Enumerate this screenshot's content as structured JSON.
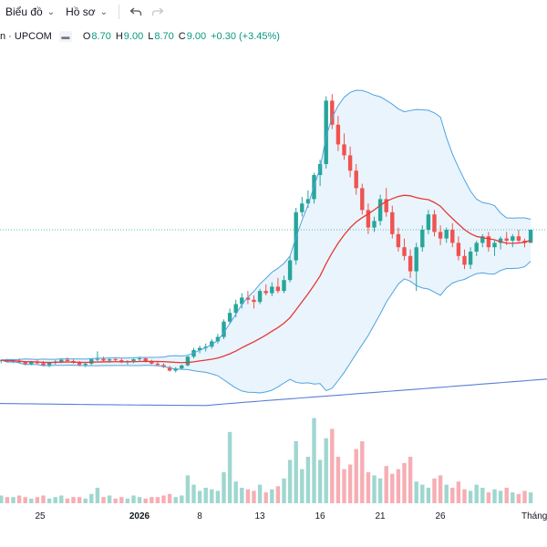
{
  "toolbar": {
    "chart_label": "Biểu đồ",
    "profile_label": "Hồ sơ",
    "undo_icon": "undo-icon",
    "redo_icon": "redo-icon"
  },
  "legend": {
    "symbol": "n · UPCOM",
    "open_label": "O",
    "open": "8.70",
    "high_label": "H",
    "high": "9.00",
    "low_label": "L",
    "low": "8.70",
    "close_label": "C",
    "close": "9.00",
    "change": "+0.30 (+3.45%)"
  },
  "colors": {
    "up": "#26a69a",
    "down": "#ef5350",
    "ma_band_line": "#4fa3e0",
    "band_fill": "#e8f3fc",
    "ma_line": "#e53935",
    "long_ma": "#5b7fd6",
    "vol_up": "#9fd7cf",
    "vol_down": "#f6aeb4"
  },
  "x_axis_labels": [
    "25",
    "2026",
    "8",
    "13",
    "16",
    "21",
    "26",
    "Tháng"
  ],
  "chart_data": {
    "type": "candlestick",
    "price_line": 9.0,
    "candles": [
      [
        6.0,
        6.04,
        5.95,
        6.02
      ],
      [
        6.02,
        6.05,
        5.97,
        5.99
      ],
      [
        5.99,
        6.03,
        5.95,
        6.01
      ],
      [
        6.01,
        6.06,
        5.96,
        5.97
      ],
      [
        5.97,
        6.0,
        5.9,
        5.93
      ],
      [
        5.93,
        6.0,
        5.9,
        5.98
      ],
      [
        5.98,
        6.03,
        5.93,
        5.95
      ],
      [
        5.95,
        6.0,
        5.88,
        5.9
      ],
      [
        5.9,
        5.98,
        5.86,
        5.96
      ],
      [
        5.96,
        6.02,
        5.92,
        5.99
      ],
      [
        5.99,
        6.05,
        5.95,
        6.03
      ],
      [
        6.03,
        6.08,
        5.98,
        6.0
      ],
      [
        6.0,
        6.04,
        5.94,
        5.96
      ],
      [
        5.96,
        6.0,
        5.88,
        5.91
      ],
      [
        5.91,
        5.96,
        5.86,
        5.94
      ],
      [
        5.94,
        6.06,
        5.9,
        6.04
      ],
      [
        6.04,
        6.22,
        6.0,
        6.05
      ],
      [
        6.05,
        6.1,
        5.98,
        6.01
      ],
      [
        6.01,
        6.07,
        5.96,
        6.04
      ],
      [
        6.04,
        6.09,
        5.98,
        6.02
      ],
      [
        6.02,
        6.06,
        5.95,
        5.97
      ],
      [
        5.97,
        6.02,
        5.92,
        6.0
      ],
      [
        6.0,
        6.06,
        5.95,
        6.04
      ],
      [
        6.04,
        6.1,
        5.98,
        6.06
      ],
      [
        6.06,
        6.09,
        5.97,
        6.0
      ],
      [
        6.0,
        6.03,
        5.92,
        5.94
      ],
      [
        5.94,
        5.98,
        5.88,
        5.91
      ],
      [
        5.91,
        5.95,
        5.84,
        5.86
      ],
      [
        5.86,
        5.89,
        5.76,
        5.78
      ],
      [
        5.78,
        5.86,
        5.74,
        5.83
      ],
      [
        5.83,
        5.92,
        5.8,
        5.9
      ],
      [
        5.9,
        6.12,
        5.88,
        6.1
      ],
      [
        6.1,
        6.3,
        6.06,
        6.25
      ],
      [
        6.25,
        6.35,
        6.18,
        6.3
      ],
      [
        6.3,
        6.4,
        6.22,
        6.33
      ],
      [
        6.33,
        6.5,
        6.28,
        6.45
      ],
      [
        6.45,
        6.62,
        6.4,
        6.55
      ],
      [
        6.55,
        6.95,
        6.5,
        6.9
      ],
      [
        6.9,
        7.2,
        6.85,
        7.1
      ],
      [
        7.1,
        7.4,
        7.0,
        7.3
      ],
      [
        7.3,
        7.55,
        7.2,
        7.45
      ],
      [
        7.45,
        7.6,
        7.3,
        7.4
      ],
      [
        7.4,
        7.5,
        7.2,
        7.35
      ],
      [
        7.35,
        7.65,
        7.3,
        7.6
      ],
      [
        7.6,
        7.75,
        7.5,
        7.55
      ],
      [
        7.55,
        7.8,
        7.48,
        7.7
      ],
      [
        7.7,
        7.9,
        7.55,
        7.6
      ],
      [
        7.6,
        7.95,
        7.55,
        7.85
      ],
      [
        7.85,
        8.4,
        7.8,
        8.3
      ],
      [
        8.3,
        9.5,
        8.2,
        9.4
      ],
      [
        9.4,
        9.75,
        9.3,
        9.6
      ],
      [
        9.6,
        9.9,
        9.5,
        9.7
      ],
      [
        9.7,
        10.3,
        9.6,
        10.25
      ],
      [
        10.25,
        10.6,
        10.0,
        10.5
      ],
      [
        10.5,
        12.05,
        10.4,
        11.95
      ],
      [
        11.95,
        12.1,
        11.3,
        11.4
      ],
      [
        11.4,
        11.6,
        10.8,
        10.95
      ],
      [
        10.95,
        11.2,
        10.6,
        10.7
      ],
      [
        10.7,
        10.9,
        10.2,
        10.35
      ],
      [
        10.35,
        10.5,
        9.8,
        9.95
      ],
      [
        9.95,
        10.05,
        9.35,
        9.45
      ],
      [
        9.45,
        9.6,
        8.9,
        9.05
      ],
      [
        9.05,
        9.3,
        8.95,
        9.2
      ],
      [
        9.2,
        9.8,
        9.1,
        9.7
      ],
      [
        9.7,
        9.95,
        9.3,
        9.4
      ],
      [
        9.4,
        9.55,
        8.8,
        8.9
      ],
      [
        8.9,
        9.05,
        8.5,
        8.6
      ],
      [
        8.6,
        8.8,
        8.3,
        8.4
      ],
      [
        8.4,
        8.55,
        7.9,
        8.05
      ],
      [
        8.05,
        8.7,
        7.6,
        8.6
      ],
      [
        8.6,
        9.1,
        8.5,
        9.0
      ],
      [
        9.0,
        9.45,
        8.9,
        9.35
      ],
      [
        9.35,
        9.45,
        8.85,
        8.95
      ],
      [
        8.95,
        9.1,
        8.65,
        8.8
      ],
      [
        8.8,
        9.05,
        8.7,
        9.0
      ],
      [
        9.0,
        9.15,
        8.6,
        8.7
      ],
      [
        8.7,
        8.85,
        8.3,
        8.4
      ],
      [
        8.4,
        8.55,
        8.1,
        8.2
      ],
      [
        8.2,
        8.6,
        8.1,
        8.5
      ],
      [
        8.5,
        8.75,
        8.4,
        8.7
      ],
      [
        8.7,
        8.9,
        8.6,
        8.85
      ],
      [
        8.85,
        8.95,
        8.5,
        8.6
      ],
      [
        8.6,
        8.75,
        8.4,
        8.7
      ],
      [
        8.7,
        8.85,
        8.55,
        8.8
      ],
      [
        8.8,
        8.95,
        8.65,
        8.75
      ],
      [
        8.75,
        8.9,
        8.6,
        8.85
      ],
      [
        8.85,
        9.0,
        8.7,
        8.75
      ],
      [
        8.75,
        8.8,
        8.6,
        8.7
      ],
      [
        8.7,
        9.0,
        8.7,
        9.0
      ]
    ],
    "volumes": [
      0.05,
      0.04,
      0.04,
      0.05,
      0.04,
      0.03,
      0.04,
      0.05,
      0.03,
      0.04,
      0.05,
      0.03,
      0.04,
      0.04,
      0.03,
      0.06,
      0.1,
      0.04,
      0.05,
      0.03,
      0.04,
      0.03,
      0.05,
      0.04,
      0.03,
      0.04,
      0.04,
      0.05,
      0.06,
      0.04,
      0.05,
      0.18,
      0.12,
      0.08,
      0.1,
      0.09,
      0.08,
      0.2,
      0.46,
      0.14,
      0.1,
      0.09,
      0.08,
      0.12,
      0.07,
      0.09,
      0.11,
      0.16,
      0.28,
      0.4,
      0.22,
      0.3,
      0.55,
      0.28,
      0.42,
      0.48,
      0.3,
      0.22,
      0.25,
      0.35,
      0.4,
      0.2,
      0.18,
      0.16,
      0.24,
      0.19,
      0.22,
      0.26,
      0.3,
      0.14,
      0.12,
      0.1,
      0.16,
      0.18,
      0.12,
      0.1,
      0.14,
      0.09,
      0.08,
      0.12,
      0.1,
      0.07,
      0.09,
      0.08,
      0.1,
      0.07,
      0.06,
      0.08,
      0.07
    ]
  }
}
